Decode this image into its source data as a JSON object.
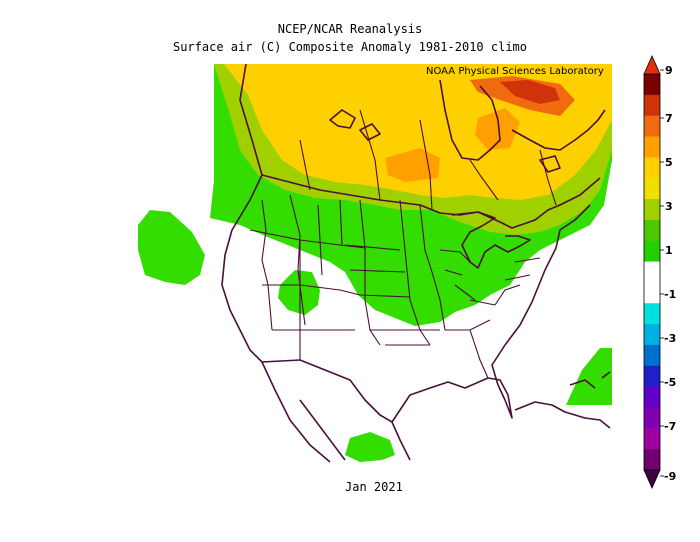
{
  "header": {
    "title": "NCEP/NCAR Reanalysis",
    "subtitle": "Surface air (C) Composite Anomaly 1981-2010 climo",
    "credit": "NOAA Physical Sciences Laboratory"
  },
  "footer": {
    "date": "Jan 2021"
  },
  "colorbar": {
    "labels": [
      "9",
      "7",
      "5",
      "3",
      "1",
      "-1",
      "-3",
      "-5",
      "-7",
      "-9"
    ],
    "bins": [
      "#7a0000",
      "#d0320a",
      "#f06a10",
      "#ffa000",
      "#ffd000",
      "#f0e000",
      "#a0d000",
      "#50c800",
      "#20d000",
      "#ffffff",
      "#ffffff",
      "#00e0e0",
      "#00b0e0",
      "#0070d0",
      "#2020c8",
      "#6000c8",
      "#8000b0",
      "#a000a0",
      "#700070"
    ],
    "top_cap_color": "#e03010",
    "bottom_cap_color": "#400040"
  },
  "map": {
    "region": "North America",
    "colors": {
      "bg": "#ffffff",
      "green_bright": "#33dd00",
      "green_mid": "#66cc00",
      "yellow_green": "#b4d700",
      "yellow": "#ffd200",
      "orange_light": "#ffaa22",
      "orange": "#f08000",
      "red": "#d01000",
      "borders": "#4a0f3a"
    }
  }
}
